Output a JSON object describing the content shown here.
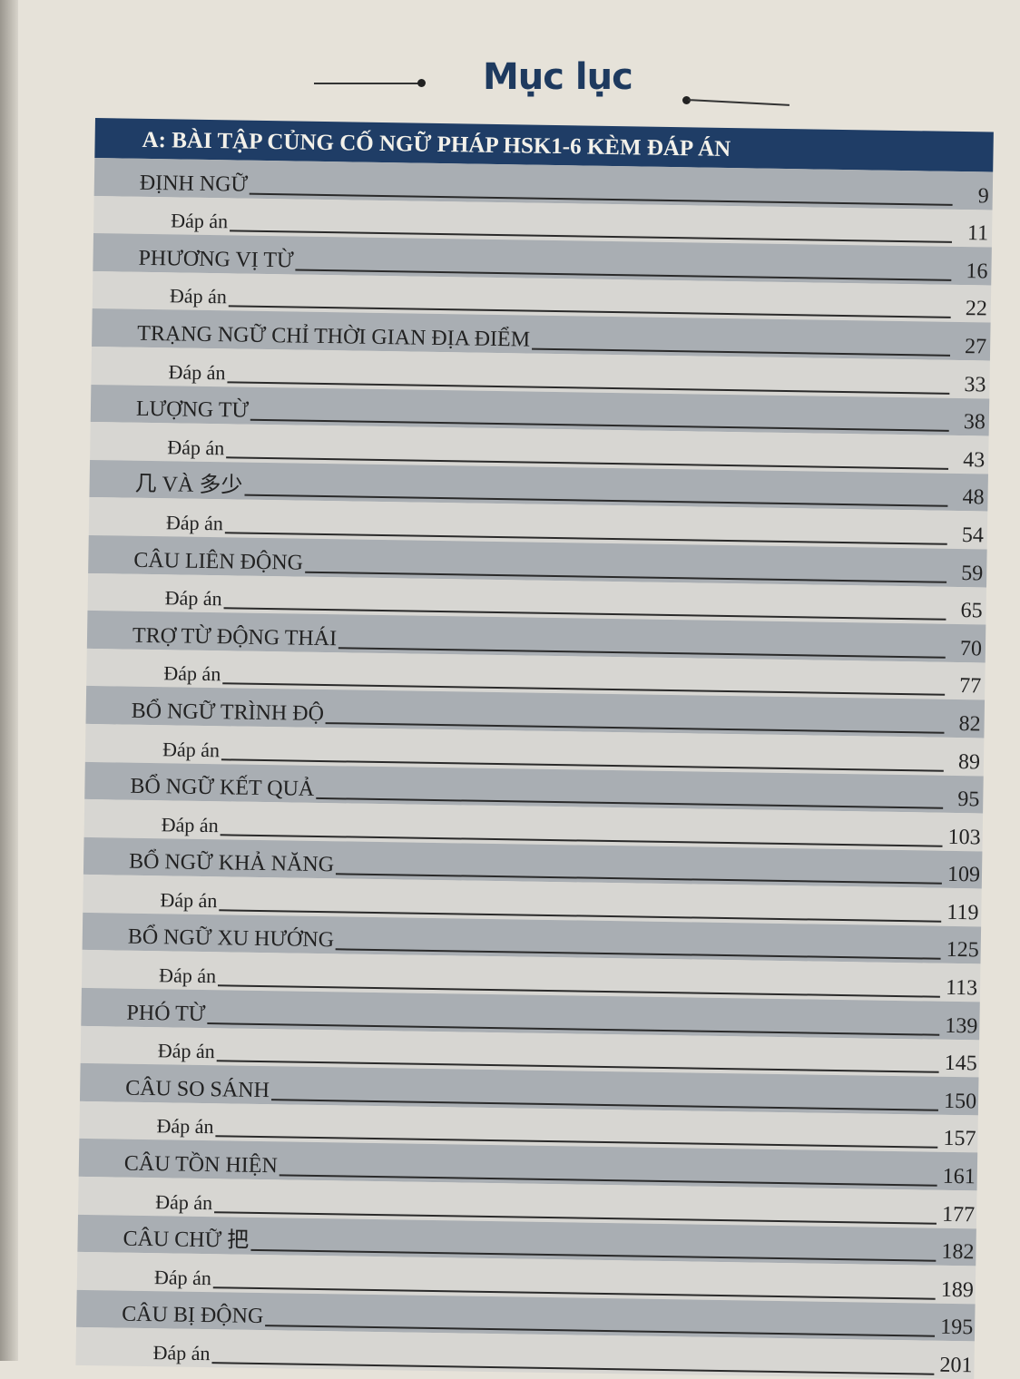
{
  "title": "Mục lục",
  "section": "A: BÀI TẬP CỦNG CỐ NGỮ PHÁP HSK1-6 KÈM ĐÁP ÁN",
  "entries": [
    {
      "label": "ĐỊNH  NGỮ",
      "page": "9",
      "sub": false
    },
    {
      "label": "Đáp án",
      "page": "11",
      "sub": true
    },
    {
      "label": "PHƯƠNG VỊ TỪ",
      "page": "16",
      "sub": false
    },
    {
      "label": "Đáp án",
      "page": "22",
      "sub": true
    },
    {
      "label": "TRẠNG NGỮ CHỈ THỜI GIAN ĐỊA ĐIỂM",
      "page": "27",
      "sub": false
    },
    {
      "label": "Đáp án",
      "page": "33",
      "sub": true
    },
    {
      "label": "LƯỢNG TỪ",
      "page": "38",
      "sub": false
    },
    {
      "label": "Đáp án",
      "page": "43",
      "sub": true
    },
    {
      "label": "几 VÀ 多少",
      "page": "48",
      "sub": false
    },
    {
      "label": "Đáp án",
      "page": "54",
      "sub": true
    },
    {
      "label": "CÂU LIÊN ĐỘNG",
      "page": "59",
      "sub": false
    },
    {
      "label": "Đáp án",
      "page": "65",
      "sub": true
    },
    {
      "label": "TRỢ TỪ ĐỘNG THÁI",
      "page": "70",
      "sub": false
    },
    {
      "label": "Đáp án",
      "page": "77",
      "sub": true
    },
    {
      "label": "BỔ NGỮ TRÌNH ĐỘ",
      "page": "82",
      "sub": false
    },
    {
      "label": "Đáp   án",
      "page": "89",
      "sub": true
    },
    {
      "label": "BỔ NGỮ KẾT QUẢ",
      "page": "95",
      "sub": false
    },
    {
      "label": "Đáp án",
      "page": "103",
      "sub": true
    },
    {
      "label": "BỔ NGỮ KHẢ NĂNG",
      "page": "109",
      "sub": false
    },
    {
      "label": "Đáp án",
      "page": "119",
      "sub": true
    },
    {
      "label": "BỔ NGỮ XU HƯỚNG",
      "page": "125",
      "sub": false
    },
    {
      "label": "Đáp án",
      "page": "113",
      "sub": true
    },
    {
      "label": "PHÓ TỪ",
      "page": "139",
      "sub": false
    },
    {
      "label": "Đáp án",
      "page": "145",
      "sub": true
    },
    {
      "label": "CÂU SO SÁNH",
      "page": "150",
      "sub": false
    },
    {
      "label": "Đáp án",
      "page": "157",
      "sub": true
    },
    {
      "label": "CÂU TỒN HIỆN",
      "page": "161",
      "sub": false
    },
    {
      "label": "Đáp án",
      "page": "177",
      "sub": true
    },
    {
      "label": "CÂU CHỮ 把",
      "page": "182",
      "sub": false
    },
    {
      "label": "Đáp án",
      "page": "189",
      "sub": true
    },
    {
      "label": "CÂU BỊ ĐỘNG",
      "page": "195",
      "sub": false
    },
    {
      "label": "Đáp án",
      "page": "201",
      "sub": true
    }
  ],
  "colors": {
    "header_bg": "#1f3d66",
    "title": "#1e3a5f",
    "band": "#a9aeb3"
  }
}
